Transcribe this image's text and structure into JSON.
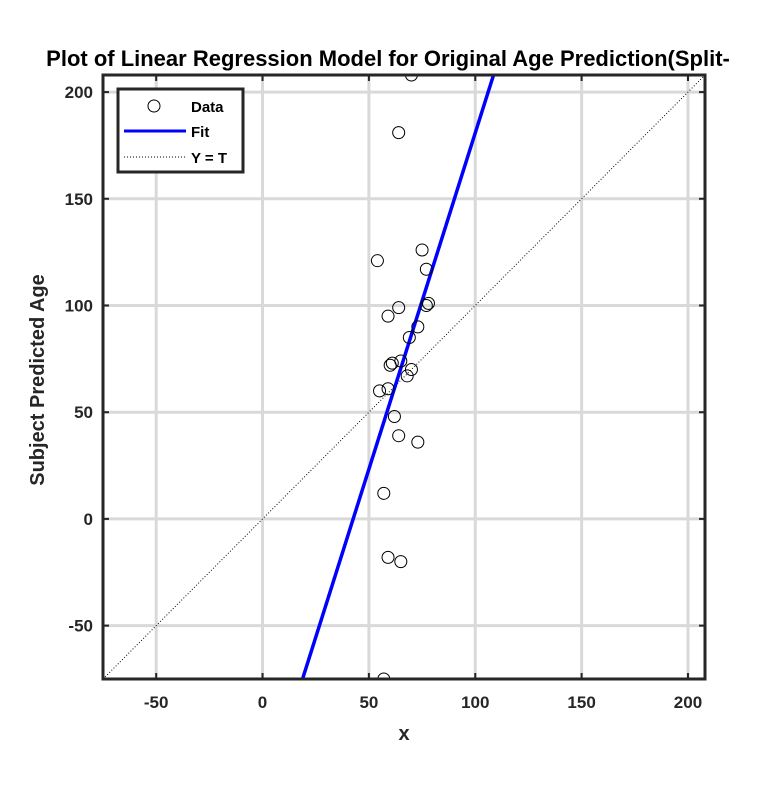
{
  "chart_data": {
    "type": "scatter",
    "title": "Plot of Linear Regression Model for Original Age Prediction(Split-",
    "xlabel": "x",
    "ylabel": "Subject Predicted Age",
    "xlim": [
      -75,
      208
    ],
    "ylim": [
      -75,
      208
    ],
    "xticks": [
      -50,
      0,
      50,
      100,
      150,
      200
    ],
    "yticks": [
      -50,
      0,
      50,
      100,
      150,
      200
    ],
    "x_tick_labels": [
      "-50",
      "0",
      "50",
      "100",
      "150",
      "200"
    ],
    "y_tick_labels": [
      "-50",
      "0",
      "50",
      "100",
      "150",
      "200"
    ],
    "grid": true,
    "legend_position": "top-left",
    "series": [
      {
        "name": "Data",
        "kind": "markers",
        "marker": "open-circle",
        "color": "#000000",
        "points": [
          {
            "x": 70,
            "y": 208
          },
          {
            "x": 64,
            "y": 181
          },
          {
            "x": 75,
            "y": 126
          },
          {
            "x": 54,
            "y": 121
          },
          {
            "x": 77,
            "y": 117
          },
          {
            "x": 78,
            "y": 101
          },
          {
            "x": 77,
            "y": 100
          },
          {
            "x": 64,
            "y": 99
          },
          {
            "x": 59,
            "y": 95
          },
          {
            "x": 73,
            "y": 90
          },
          {
            "x": 69,
            "y": 85
          },
          {
            "x": 65,
            "y": 74
          },
          {
            "x": 60,
            "y": 72
          },
          {
            "x": 61,
            "y": 73
          },
          {
            "x": 70,
            "y": 70
          },
          {
            "x": 68,
            "y": 67
          },
          {
            "x": 55,
            "y": 60
          },
          {
            "x": 59,
            "y": 61
          },
          {
            "x": 62,
            "y": 48
          },
          {
            "x": 64,
            "y": 39
          },
          {
            "x": 73,
            "y": 36
          },
          {
            "x": 57,
            "y": 12
          },
          {
            "x": 59,
            "y": -18
          },
          {
            "x": 65,
            "y": -20
          },
          {
            "x": 57,
            "y": -75
          }
        ]
      },
      {
        "name": "Fit",
        "kind": "line",
        "color": "#0000ff",
        "x": [
          18.8,
          108.6
        ],
        "y": [
          -75,
          208
        ]
      },
      {
        "name": "Y = T",
        "kind": "dotted-line",
        "color": "#000000",
        "x": [
          -75,
          208
        ],
        "y": [
          -75,
          208
        ]
      }
    ]
  }
}
